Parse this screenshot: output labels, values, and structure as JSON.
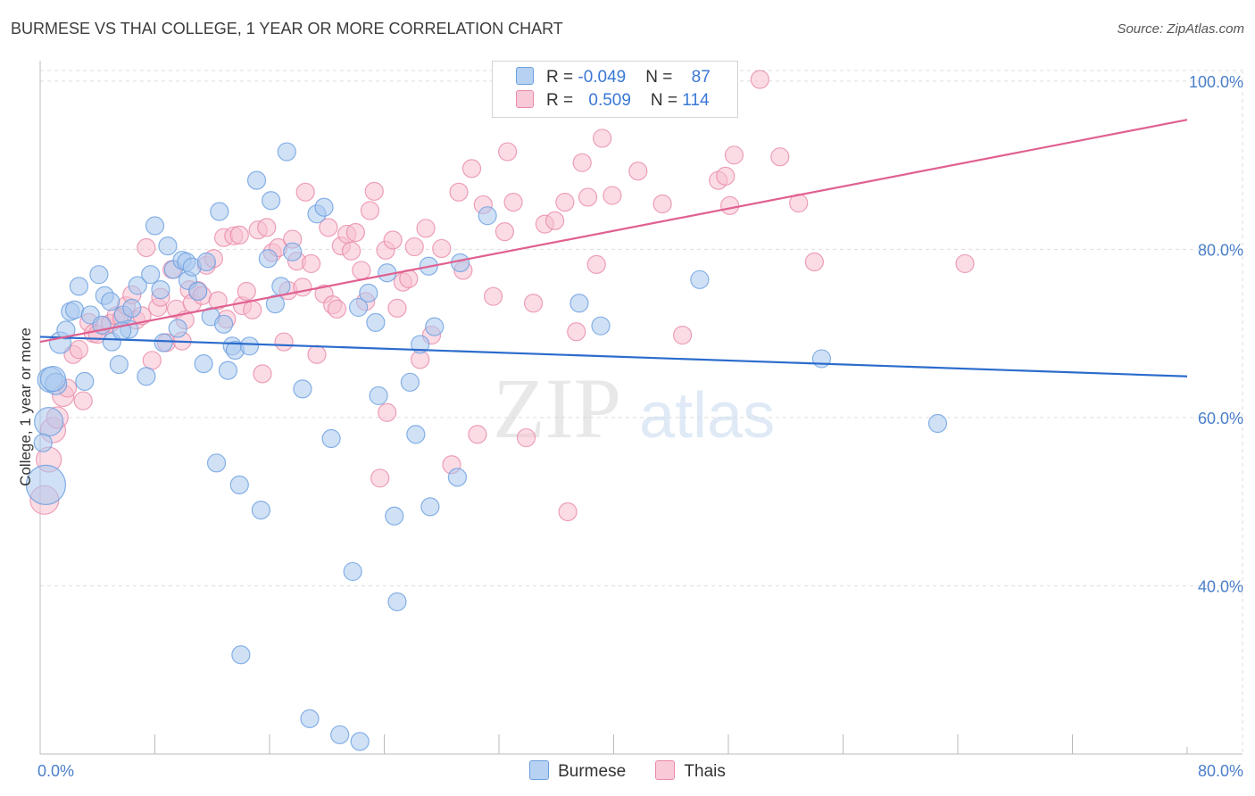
{
  "header": {
    "title": "BURMESE VS THAI COLLEGE, 1 YEAR OR MORE CORRELATION CHART",
    "source": "Source: ZipAtlas.com"
  },
  "legend": {
    "row1": {
      "r_label": "R = ",
      "r_value": "-0.049",
      "n_label": "N = ",
      "n_value": "87"
    },
    "row2": {
      "r_label": "R = ",
      "r_value": "0.509",
      "n_label": "N = ",
      "n_value": "114"
    }
  },
  "watermark": {
    "zip": "ZIP",
    "atlas": "atlas"
  },
  "colors": {
    "burmese_fill": "#a9c8ef",
    "burmese_stroke": "#6a9fe0",
    "burmese_line": "#2b6ccc",
    "thai_fill": "#f7c0d0",
    "thai_stroke": "#e98aa8",
    "thai_line": "#e06090",
    "axis_text": "#4a7fc9",
    "grid": "#dddddd"
  },
  "chart_data": {
    "type": "scatter",
    "title": "BURMESE VS THAI COLLEGE, 1 YEAR OR MORE CORRELATION CHART",
    "xlabel": "",
    "ylabel": "College, 1 year or more",
    "xlim": [
      0,
      80
    ],
    "ylim": [
      20,
      102
    ],
    "x_tick_labels": [
      "0.0%",
      "80.0%"
    ],
    "y_ticks": [
      40,
      60,
      80,
      100
    ],
    "y_tick_labels": [
      "40.0%",
      "60.0%",
      "80.0%",
      "100.0%"
    ],
    "legend": [
      "Burmese",
      "Thais"
    ],
    "series": [
      {
        "name": "Burmese",
        "r": -0.049,
        "n": 87,
        "trend": {
          "x": [
            0,
            80
          ],
          "y": [
            69.6,
            64.9
          ]
        },
        "points": [
          [
            0.4,
            52.0
          ],
          [
            0.6,
            59.5
          ],
          [
            0.7,
            64.5
          ],
          [
            1.1,
            64.0
          ],
          [
            1.4,
            68.9
          ],
          [
            1.8,
            70.4
          ],
          [
            2.1,
            72.6
          ],
          [
            2.4,
            72.8
          ],
          [
            2.7,
            75.6
          ],
          [
            3.1,
            64.3
          ],
          [
            3.5,
            72.2
          ],
          [
            4.1,
            77.0
          ],
          [
            4.3,
            71.0
          ],
          [
            4.5,
            74.5
          ],
          [
            4.9,
            73.8
          ],
          [
            5.0,
            69.0
          ],
          [
            5.5,
            66.3
          ],
          [
            5.8,
            72.2
          ],
          [
            6.2,
            70.5
          ],
          [
            6.4,
            73.0
          ],
          [
            6.8,
            75.7
          ],
          [
            7.4,
            64.9
          ],
          [
            7.7,
            77.0
          ],
          [
            8.0,
            82.8
          ],
          [
            8.4,
            75.2
          ],
          [
            8.6,
            68.9
          ],
          [
            8.9,
            80.4
          ],
          [
            9.3,
            77.6
          ],
          [
            9.6,
            70.6
          ],
          [
            9.9,
            78.7
          ],
          [
            10.2,
            78.5
          ],
          [
            10.3,
            76.3
          ],
          [
            10.6,
            77.9
          ],
          [
            11.0,
            75.0
          ],
          [
            11.4,
            66.4
          ],
          [
            11.6,
            78.5
          ],
          [
            11.9,
            72.0
          ],
          [
            12.3,
            54.6
          ],
          [
            12.5,
            84.5
          ],
          [
            12.8,
            71.1
          ],
          [
            13.1,
            65.6
          ],
          [
            13.4,
            68.5
          ],
          [
            13.6,
            68.0
          ],
          [
            13.9,
            52.0
          ],
          [
            14.0,
            31.8
          ],
          [
            14.6,
            68.5
          ],
          [
            15.1,
            88.2
          ],
          [
            15.4,
            49.0
          ],
          [
            15.9,
            78.9
          ],
          [
            16.1,
            85.8
          ],
          [
            16.4,
            73.5
          ],
          [
            16.8,
            75.6
          ],
          [
            17.2,
            91.6
          ],
          [
            17.6,
            79.7
          ],
          [
            18.3,
            63.4
          ],
          [
            18.8,
            24.2
          ],
          [
            19.3,
            84.2
          ],
          [
            19.8,
            85.0
          ],
          [
            20.3,
            57.5
          ],
          [
            20.9,
            22.3
          ],
          [
            21.8,
            41.7
          ],
          [
            22.2,
            73.1
          ],
          [
            22.3,
            21.5
          ],
          [
            22.9,
            74.8
          ],
          [
            23.4,
            71.3
          ],
          [
            23.6,
            62.6
          ],
          [
            24.2,
            77.2
          ],
          [
            24.7,
            48.3
          ],
          [
            24.9,
            38.1
          ],
          [
            25.8,
            64.2
          ],
          [
            26.2,
            58.0
          ],
          [
            26.5,
            68.7
          ],
          [
            27.1,
            78.0
          ],
          [
            27.2,
            49.4
          ],
          [
            27.5,
            70.8
          ],
          [
            29.1,
            52.9
          ],
          [
            29.3,
            78.4
          ],
          [
            31.2,
            84.0
          ],
          [
            33.6,
            97.5
          ],
          [
            37.6,
            73.6
          ],
          [
            39.1,
            70.9
          ],
          [
            46.0,
            76.4
          ],
          [
            54.5,
            67.0
          ],
          [
            62.6,
            59.3
          ],
          [
            0.2,
            57.0
          ],
          [
            0.9,
            64.6
          ],
          [
            5.7,
            70.3
          ]
        ],
        "sizes": [
          22,
          16,
          14,
          12,
          12,
          10,
          10,
          10,
          10,
          10,
          10,
          10,
          10,
          10,
          10,
          10,
          10,
          10,
          10,
          10,
          10,
          10,
          10,
          10,
          10,
          10,
          10,
          10,
          10,
          10,
          10,
          10,
          10,
          10,
          10,
          10,
          10,
          10,
          10,
          10,
          10,
          10,
          10,
          10,
          10,
          10,
          10,
          10,
          10,
          10,
          10,
          10,
          10,
          10,
          10,
          10,
          10,
          10,
          10,
          10,
          10,
          10,
          10,
          10,
          10,
          10,
          10,
          10,
          10,
          10,
          10,
          10,
          10,
          10,
          10,
          10,
          10,
          10,
          10,
          10,
          10,
          10,
          10,
          10,
          10,
          14,
          10
        ]
      },
      {
        "name": "Thais",
        "r": 0.509,
        "n": 114,
        "trend": {
          "x": [
            0,
            80
          ],
          "y": [
            69.0,
            95.4
          ]
        },
        "points": [
          [
            0.3,
            50.2
          ],
          [
            0.6,
            55.0
          ],
          [
            0.9,
            58.5
          ],
          [
            1.2,
            60.0
          ],
          [
            1.6,
            62.6
          ],
          [
            1.9,
            63.5
          ],
          [
            2.3,
            67.5
          ],
          [
            2.7,
            68.1
          ],
          [
            3.0,
            62.0
          ],
          [
            3.4,
            71.3
          ],
          [
            3.7,
            70.0
          ],
          [
            4.0,
            69.9
          ],
          [
            4.5,
            70.9
          ],
          [
            4.9,
            71.2
          ],
          [
            5.3,
            72.1
          ],
          [
            5.7,
            71.9
          ],
          [
            6.0,
            73.3
          ],
          [
            6.4,
            74.6
          ],
          [
            6.7,
            71.6
          ],
          [
            7.1,
            72.1
          ],
          [
            7.4,
            80.2
          ],
          [
            7.8,
            66.8
          ],
          [
            8.2,
            73.1
          ],
          [
            8.4,
            74.3
          ],
          [
            8.8,
            68.9
          ],
          [
            9.2,
            77.6
          ],
          [
            9.5,
            72.9
          ],
          [
            9.9,
            69.1
          ],
          [
            10.1,
            71.6
          ],
          [
            10.4,
            75.2
          ],
          [
            10.6,
            73.6
          ],
          [
            11.0,
            75.1
          ],
          [
            11.3,
            74.5
          ],
          [
            11.6,
            78.1
          ],
          [
            12.1,
            78.9
          ],
          [
            12.4,
            73.9
          ],
          [
            12.8,
            81.4
          ],
          [
            13.0,
            71.7
          ],
          [
            13.5,
            81.6
          ],
          [
            13.9,
            81.7
          ],
          [
            14.1,
            73.3
          ],
          [
            14.4,
            75.0
          ],
          [
            14.8,
            72.8
          ],
          [
            15.2,
            82.3
          ],
          [
            15.5,
            65.2
          ],
          [
            15.8,
            82.6
          ],
          [
            16.2,
            79.6
          ],
          [
            16.6,
            80.2
          ],
          [
            17.0,
            69.0
          ],
          [
            17.3,
            75.1
          ],
          [
            17.6,
            81.2
          ],
          [
            17.9,
            78.6
          ],
          [
            18.3,
            75.5
          ],
          [
            18.5,
            86.8
          ],
          [
            18.9,
            78.3
          ],
          [
            19.3,
            67.5
          ],
          [
            19.8,
            74.7
          ],
          [
            20.1,
            82.6
          ],
          [
            20.4,
            73.4
          ],
          [
            20.7,
            72.9
          ],
          [
            21.0,
            80.4
          ],
          [
            21.4,
            81.8
          ],
          [
            21.7,
            79.8
          ],
          [
            22.0,
            82.0
          ],
          [
            22.4,
            77.5
          ],
          [
            22.7,
            73.8
          ],
          [
            23.0,
            84.6
          ],
          [
            23.3,
            86.9
          ],
          [
            23.7,
            52.8
          ],
          [
            24.1,
            79.9
          ],
          [
            24.6,
            81.1
          ],
          [
            24.9,
            73.0
          ],
          [
            25.3,
            76.1
          ],
          [
            25.7,
            76.5
          ],
          [
            26.1,
            80.3
          ],
          [
            26.5,
            66.9
          ],
          [
            26.9,
            82.5
          ],
          [
            27.3,
            69.8
          ],
          [
            28.0,
            80.1
          ],
          [
            28.7,
            54.4
          ],
          [
            29.2,
            86.8
          ],
          [
            29.5,
            77.5
          ],
          [
            30.1,
            89.6
          ],
          [
            30.9,
            85.3
          ],
          [
            31.6,
            74.4
          ],
          [
            32.4,
            82.1
          ],
          [
            33.0,
            85.6
          ],
          [
            33.9,
            57.6
          ],
          [
            34.4,
            73.6
          ],
          [
            35.2,
            83.0
          ],
          [
            35.9,
            83.4
          ],
          [
            36.6,
            85.6
          ],
          [
            37.4,
            70.2
          ],
          [
            37.8,
            90.3
          ],
          [
            38.2,
            86.2
          ],
          [
            38.8,
            78.2
          ],
          [
            39.2,
            93.2
          ],
          [
            39.9,
            86.4
          ],
          [
            41.7,
            89.3
          ],
          [
            43.4,
            85.4
          ],
          [
            44.8,
            69.8
          ],
          [
            47.3,
            88.2
          ],
          [
            47.8,
            88.7
          ],
          [
            48.1,
            85.2
          ],
          [
            48.4,
            91.2
          ],
          [
            50.2,
            100.2
          ],
          [
            51.6,
            91.0
          ],
          [
            52.9,
            85.5
          ],
          [
            54.0,
            78.5
          ],
          [
            64.5,
            78.3
          ],
          [
            32.6,
            91.6
          ],
          [
            24.2,
            60.6
          ],
          [
            30.5,
            58.0
          ],
          [
            36.8,
            48.8
          ]
        ],
        "sizes": [
          16,
          14,
          14,
          12,
          12,
          10,
          10,
          10,
          10,
          10,
          10,
          10,
          10,
          10,
          10,
          10,
          10,
          10,
          10,
          10,
          10,
          10,
          10,
          10,
          10,
          10,
          10,
          10,
          10,
          10,
          10,
          10,
          10,
          10,
          10,
          10,
          10,
          10,
          10,
          10,
          10,
          10,
          10,
          10,
          10,
          10,
          10,
          10,
          10,
          10,
          10,
          10,
          10,
          10,
          10,
          10,
          10,
          10,
          10,
          10,
          10,
          10,
          10,
          10,
          10,
          10,
          10,
          10,
          10,
          10,
          10,
          10,
          10,
          10,
          10,
          10,
          10,
          10,
          10,
          10,
          10,
          10,
          10,
          10,
          10,
          10,
          10,
          10,
          10,
          10,
          10,
          10,
          10,
          10,
          10,
          10,
          10,
          10,
          10,
          10,
          10,
          10,
          10,
          10,
          10,
          10,
          10,
          10,
          10,
          10,
          10,
          10,
          10,
          10
        ]
      }
    ]
  }
}
